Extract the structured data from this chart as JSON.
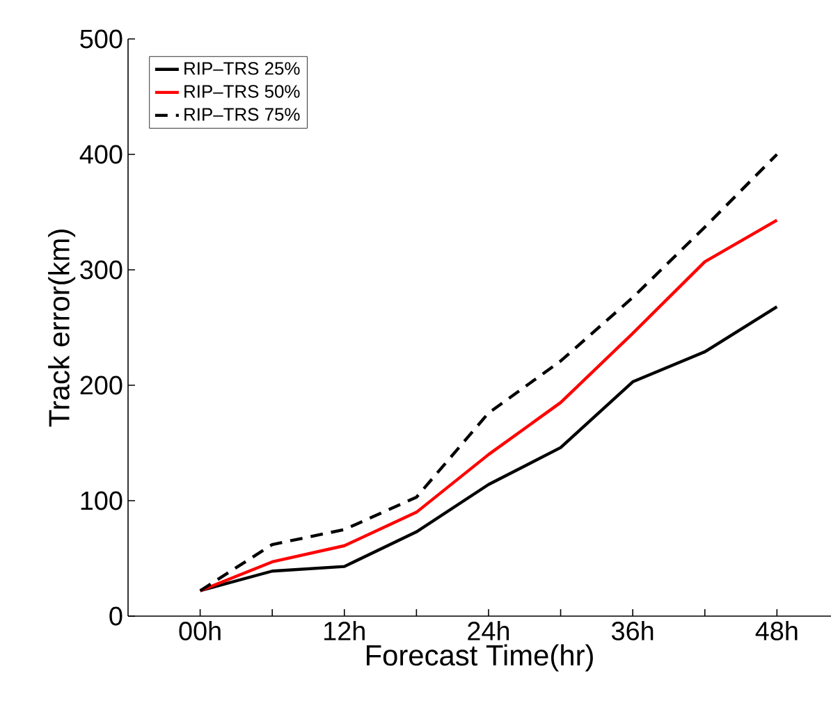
{
  "chart_data": {
    "type": "line",
    "xlabel": "Forecast Time(hr)",
    "ylabel": "Track error(km)",
    "x": [
      0,
      6,
      12,
      18,
      24,
      30,
      36,
      42,
      48
    ],
    "series": [
      {
        "name": "RIP–TRS 25%",
        "color": "#000000",
        "line_style": "solid",
        "values": [
          22,
          39,
          43,
          73,
          114,
          146,
          203,
          229,
          268
        ]
      },
      {
        "name": "RIP–TRS 50%",
        "color": "#ff0000",
        "line_style": "solid",
        "values": [
          22,
          47,
          61,
          90,
          140,
          185,
          245,
          307,
          343
        ]
      },
      {
        "name": "RIP–TRS 75%",
        "color": "#000000",
        "line_style": "dashed",
        "values": [
          22,
          62,
          75,
          103,
          176,
          221,
          276,
          337,
          400
        ]
      }
    ],
    "xlim": [
      -6,
      52.5
    ],
    "ylim": [
      0,
      500
    ],
    "xticks": [
      {
        "value": 0,
        "label": "00h"
      },
      {
        "value": 6,
        "label": null
      },
      {
        "value": 12,
        "label": "12h"
      },
      {
        "value": 18,
        "label": null
      },
      {
        "value": 24,
        "label": "24h"
      },
      {
        "value": 30,
        "label": null
      },
      {
        "value": 36,
        "label": "36h"
      },
      {
        "value": 42,
        "label": null
      },
      {
        "value": 48,
        "label": "48h"
      }
    ],
    "yticks": [
      0,
      100,
      200,
      300,
      400,
      500
    ],
    "grid": false,
    "legend": "top left",
    "marker": "none"
  }
}
